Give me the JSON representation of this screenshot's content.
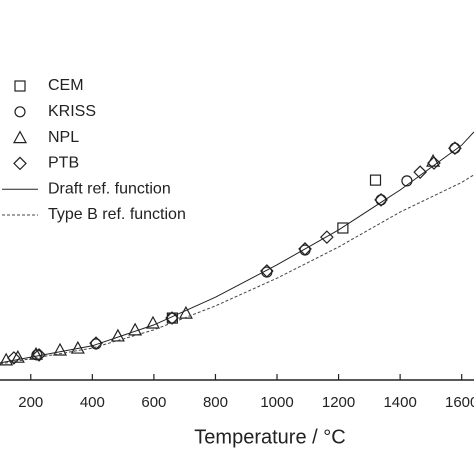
{
  "chart_data": {
    "type": "scatter",
    "xlabel": "Temperature / °C",
    "xlim": [
      100,
      1640
    ],
    "ylim": [
      0,
      100
    ],
    "xticks": [
      200,
      400,
      600,
      800,
      1000,
      1200,
      1400,
      1600
    ],
    "series": [
      {
        "name": "CEM",
        "color": "#222222",
        "marker": "square",
        "x": [
          660,
          1214,
          1320
        ],
        "values": [
          16.3,
          40,
          52.6
        ]
      },
      {
        "name": "KRISS",
        "color": "#222222",
        "marker": "circle",
        "x": [
          220,
          412,
          659,
          967,
          1091,
          1338,
          1422,
          1578
        ],
        "values": [
          6.6,
          9.5,
          16.3,
          28.4,
          34.2,
          47.4,
          52.4,
          61
        ]
      },
      {
        "name": "NPL",
        "color": "#222222",
        "marker": "triangle",
        "x": [
          120,
          158,
          217,
          295,
          353,
          483,
          539,
          597,
          704,
          1507
        ],
        "values": [
          5.3,
          6,
          6.8,
          7.9,
          8.4,
          11.6,
          13.2,
          15,
          17.6,
          57.6
        ]
      },
      {
        "name": "PTB",
        "color": "#222222",
        "marker": "diamond",
        "x": [
          145,
          227,
          412,
          659,
          967,
          1091,
          1162,
          1338,
          1465,
          1510,
          1578
        ],
        "values": [
          5.8,
          6.6,
          9.7,
          16.3,
          28.7,
          34.5,
          37.6,
          47.4,
          54.7,
          57.1,
          61
        ]
      },
      {
        "name": "Draft ref. function",
        "color": "#222222",
        "marker": "line",
        "dash": "none",
        "x": [
          100,
          400,
          600,
          800,
          1000,
          1200,
          1400,
          1600,
          1640
        ],
        "values": [
          4.5,
          9,
          14.5,
          21.8,
          30.3,
          39.5,
          50,
          61.8,
          65.3
        ]
      },
      {
        "name": "Type B ref. function",
        "color": "#444444",
        "marker": "line",
        "dash": "3,2",
        "x": [
          100,
          400,
          600,
          800,
          1000,
          1200,
          1400,
          1600,
          1640
        ],
        "values": [
          4.2,
          8.4,
          13.2,
          19.5,
          26.8,
          35,
          44.2,
          52,
          54
        ]
      }
    ]
  }
}
